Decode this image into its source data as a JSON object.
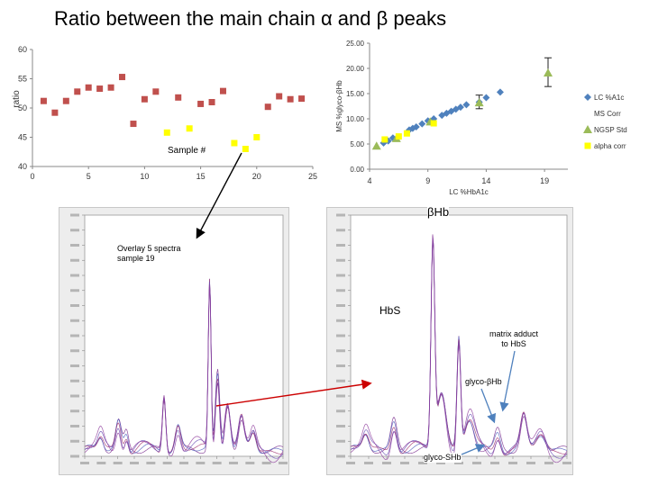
{
  "title": "Ratio between the main chain α and β peaks",
  "chart_data": [
    {
      "type": "scatter",
      "name": "ratio_vs_sample",
      "ylabel": "ratio",
      "xlabel": "Sample #",
      "xlim": [
        0,
        25
      ],
      "ylim": [
        40,
        60
      ],
      "xticks": [
        0,
        5,
        10,
        15,
        20,
        25
      ],
      "yticks": [
        40,
        45,
        50,
        55,
        60
      ],
      "xtick_labels": [
        "0",
        "5",
        "10",
        "15",
        "20",
        "25"
      ],
      "ytick_labels": [
        "40",
        "45",
        "50",
        "55",
        "60"
      ],
      "series": [
        {
          "name": "samples",
          "color": "#c0504d",
          "marker": "square",
          "points": [
            [
              1,
              51.2
            ],
            [
              2,
              49.2
            ],
            [
              3,
              51.2
            ],
            [
              4,
              52.8
            ],
            [
              5,
              53.5
            ],
            [
              6,
              53.3
            ],
            [
              7,
              53.5
            ],
            [
              8,
              55.3
            ],
            [
              9,
              47.3
            ],
            [
              10,
              51.5
            ],
            [
              11,
              52.8
            ],
            [
              13,
              51.8
            ],
            [
              15,
              50.7
            ],
            [
              16,
              51
            ],
            [
              17,
              52.9
            ],
            [
              21,
              50.2
            ],
            [
              22,
              52
            ],
            [
              23,
              51.5
            ],
            [
              24,
              51.6
            ]
          ]
        },
        {
          "name": "highlighted",
          "color": "#ffff00",
          "marker": "square",
          "points": [
            [
              12,
              45.8
            ],
            [
              14,
              46.5
            ],
            [
              18,
              44
            ],
            [
              19,
              43
            ],
            [
              20,
              45
            ]
          ]
        }
      ]
    },
    {
      "type": "scatter",
      "name": "ms_vs_lc",
      "ylabel": "MS %glyco-βHb",
      "xlabel": "LC %HbA1c",
      "xlim": [
        4,
        21
      ],
      "ylim": [
        0,
        25
      ],
      "xticks": [
        4,
        9,
        14,
        19
      ],
      "yticks": [
        0,
        5,
        10,
        15,
        20,
        25
      ],
      "xtick_labels": [
        "4",
        "9",
        "14",
        "19"
      ],
      "ytick_labels": [
        "0.00",
        "5.00",
        "10.00",
        "15.00",
        "20.00",
        "25.00"
      ],
      "legend": [
        "LC %A1c",
        "MS Corr",
        "NGSP Std",
        "alpha corr"
      ],
      "legend_position": "right",
      "series": [
        {
          "name": "LC %A1c",
          "color": "#4f81bd",
          "marker": "diamond",
          "points": [
            [
              5.2,
              5.2
            ],
            [
              5.6,
              5.6
            ],
            [
              6,
              6.2
            ],
            [
              7.4,
              7.8
            ],
            [
              7.7,
              8.1
            ],
            [
              8,
              8.4
            ],
            [
              8.5,
              9
            ],
            [
              9,
              9.6
            ],
            [
              9.5,
              10
            ],
            [
              10.2,
              10.7
            ],
            [
              10.6,
              11.1
            ],
            [
              11,
              11.5
            ],
            [
              11.4,
              11.9
            ],
            [
              11.8,
              12.3
            ],
            [
              12.3,
              12.8
            ],
            [
              13.4,
              13.3
            ],
            [
              14,
              14.2
            ],
            [
              15.2,
              15.3
            ]
          ]
        },
        {
          "name": "NGSP Std",
          "color": "#9bbb59",
          "marker": "triangle",
          "points": [
            [
              4.6,
              4.6
            ],
            [
              6.3,
              6.1
            ],
            [
              9.2,
              9.4
            ],
            [
              13.4,
              13.2
            ],
            [
              19.3,
              19.1
            ]
          ]
        },
        {
          "name": "alpha corr",
          "color": "#ffff00",
          "marker": "square",
          "points": [
            [
              5.3,
              5.9
            ],
            [
              6.5,
              6.5
            ],
            [
              7.2,
              7.1
            ],
            [
              9.5,
              9.1
            ]
          ]
        }
      ],
      "error_bars": [
        {
          "x": 13.4,
          "y": 13.3,
          "low": 12.0,
          "high": 14.7
        },
        {
          "x": 19.3,
          "y": 19.1,
          "low": 16.4,
          "high": 22.1
        }
      ]
    }
  ],
  "annotations": {
    "sample_label": "Sample #",
    "overlay_line1": "Overlay 5 spectra",
    "overlay_line2": "sample 19",
    "beta_hb": "βHb",
    "hbs": "HbS",
    "matrix_line1": "matrix adduct",
    "matrix_line2": "to HbS",
    "glyco_bhb": "glyco-βHb",
    "glyco_shb": "glyco-SHb"
  },
  "colors": {
    "arrow_black": "#000000",
    "arrow_red": "#cc0000",
    "arrow_blue": "#4f81bd",
    "spectrum": "#7a2e8e"
  }
}
